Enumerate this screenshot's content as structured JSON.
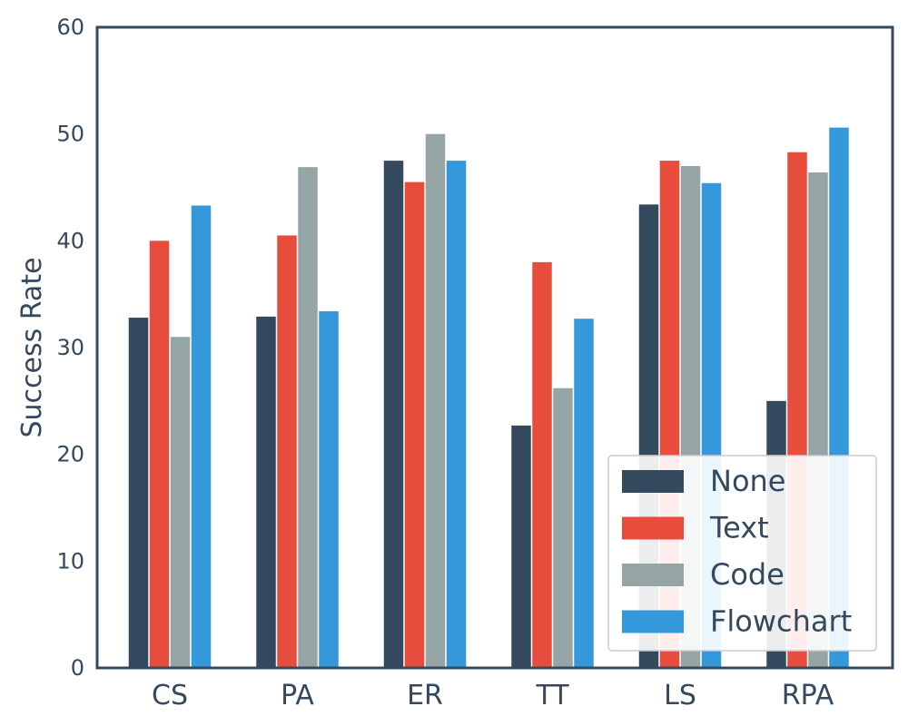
{
  "chart_data": {
    "type": "bar",
    "categories": [
      "CS",
      "PA",
      "ER",
      "TT",
      "LS",
      "RPA"
    ],
    "series": [
      {
        "name": "None",
        "color": "#34495e",
        "values": [
          32.8,
          32.9,
          47.5,
          22.7,
          43.4,
          25.0
        ]
      },
      {
        "name": "Text",
        "color": "#e74c3c",
        "values": [
          40.0,
          40.5,
          45.5,
          38.0,
          47.5,
          48.3
        ]
      },
      {
        "name": "Code",
        "color": "#95a5a6",
        "values": [
          31.0,
          46.9,
          50.0,
          26.2,
          47.0,
          46.4
        ]
      },
      {
        "name": "Flowchart",
        "color": "#3498db",
        "values": [
          43.3,
          33.4,
          47.5,
          32.7,
          45.4,
          50.6
        ]
      }
    ],
    "ylabel": "Success Rate",
    "xlabel": "",
    "ylim": [
      0,
      60
    ],
    "yticks": [
      0,
      10,
      20,
      30,
      40,
      50,
      60
    ],
    "legend_position": "lower-right",
    "axis_color": "#34495e",
    "grid": false
  }
}
